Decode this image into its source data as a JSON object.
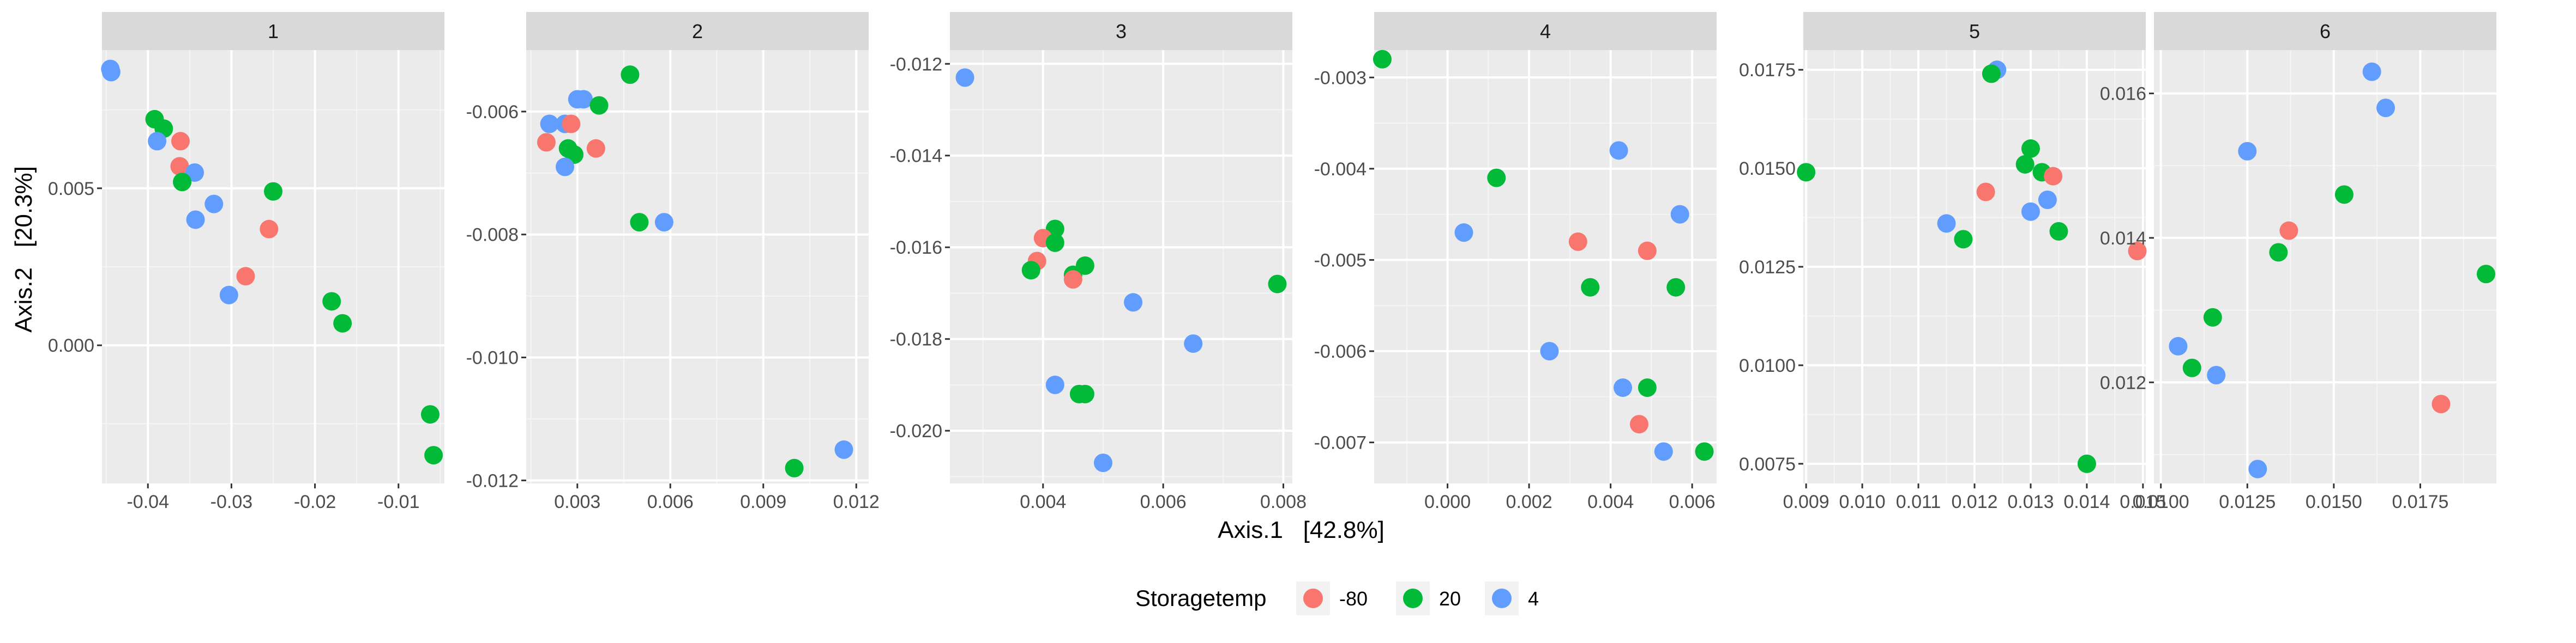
{
  "chart_data": {
    "type": "scatter",
    "xlabel": "Axis.1   [42.8%]",
    "ylabel": "Axis.2   [20.3%]",
    "legend": {
      "title": "Storagetemp",
      "position": "bottom",
      "entries": [
        {
          "label": "-80",
          "color": "#F8766D"
        },
        {
          "label": "20",
          "color": "#00BA38"
        },
        {
          "label": "4",
          "color": "#619CFF"
        }
      ]
    },
    "grid": true,
    "facets": [
      {
        "label": "1",
        "xlim": [
          -0.0455,
          -0.0045
        ],
        "ylim": [
          -0.0044,
          0.0094
        ],
        "xticks": [
          {
            "v": -0.04,
            "t": "-0.04"
          },
          {
            "v": -0.03,
            "t": "-0.03"
          },
          {
            "v": -0.02,
            "t": "-0.02"
          },
          {
            "v": -0.01,
            "t": "-0.01"
          }
        ],
        "yticks": [
          {
            "v": 0.0,
            "t": "0.000"
          },
          {
            "v": 0.005,
            "t": "0.005"
          }
        ],
        "points": [
          {
            "x": -0.0445,
            "y": 0.0088,
            "g": "4"
          },
          {
            "x": -0.0444,
            "y": 0.0087,
            "g": "4"
          },
          {
            "x": -0.0392,
            "y": 0.0072,
            "g": "20"
          },
          {
            "x": -0.0381,
            "y": 0.0069,
            "g": "20"
          },
          {
            "x": -0.0389,
            "y": 0.0065,
            "g": "4"
          },
          {
            "x": -0.0361,
            "y": 0.0065,
            "g": "-80"
          },
          {
            "x": -0.0362,
            "y": 0.0057,
            "g": "-80"
          },
          {
            "x": -0.0344,
            "y": 0.0055,
            "g": "4"
          },
          {
            "x": -0.0359,
            "y": 0.0052,
            "g": "20"
          },
          {
            "x": -0.025,
            "y": 0.0049,
            "g": "20"
          },
          {
            "x": -0.0321,
            "y": 0.0045,
            "g": "4"
          },
          {
            "x": -0.0343,
            "y": 0.004,
            "g": "4"
          },
          {
            "x": -0.0255,
            "y": 0.0037,
            "g": "-80"
          },
          {
            "x": -0.0283,
            "y": 0.0022,
            "g": "-80"
          },
          {
            "x": -0.0303,
            "y": 0.0016,
            "g": "4"
          },
          {
            "x": -0.018,
            "y": 0.0014,
            "g": "20"
          },
          {
            "x": -0.0167,
            "y": 0.0007,
            "g": "20"
          },
          {
            "x": -0.0062,
            "y": -0.0022,
            "g": "20"
          },
          {
            "x": -0.0058,
            "y": -0.0035,
            "g": "20"
          }
        ]
      },
      {
        "label": "2",
        "xlim": [
          0.00135,
          0.0124
        ],
        "ylim": [
          -0.01205,
          -0.005
        ],
        "xticks": [
          {
            "v": 0.003,
            "t": "0.003"
          },
          {
            "v": 0.006,
            "t": "0.006"
          },
          {
            "v": 0.009,
            "t": "0.009"
          },
          {
            "v": 0.012,
            "t": "0.012"
          }
        ],
        "yticks": [
          {
            "v": -0.006,
            "t": "-0.006"
          },
          {
            "v": -0.008,
            "t": "-0.008"
          },
          {
            "v": -0.01,
            "t": "-0.010"
          },
          {
            "v": -0.012,
            "t": "-0.012"
          }
        ],
        "points": [
          {
            "x": 0.0047,
            "y": -0.0054,
            "g": "20"
          },
          {
            "x": 0.0032,
            "y": -0.0058,
            "g": "4"
          },
          {
            "x": 0.003,
            "y": -0.0058,
            "g": "4"
          },
          {
            "x": 0.0037,
            "y": -0.0059,
            "g": "20"
          },
          {
            "x": 0.0021,
            "y": -0.0062,
            "g": "4"
          },
          {
            "x": 0.0026,
            "y": -0.0062,
            "g": "4"
          },
          {
            "x": 0.0028,
            "y": -0.0062,
            "g": "-80"
          },
          {
            "x": 0.002,
            "y": -0.0065,
            "g": "-80"
          },
          {
            "x": 0.0027,
            "y": -0.0066,
            "g": "20"
          },
          {
            "x": 0.0036,
            "y": -0.0066,
            "g": "-80"
          },
          {
            "x": 0.0029,
            "y": -0.0067,
            "g": "20"
          },
          {
            "x": 0.0026,
            "y": -0.0069,
            "g": "4"
          },
          {
            "x": 0.005,
            "y": -0.0078,
            "g": "20"
          },
          {
            "x": 0.0058,
            "y": -0.0078,
            "g": "4"
          },
          {
            "x": 0.0116,
            "y": -0.0115,
            "g": "4"
          },
          {
            "x": 0.01,
            "y": -0.0118,
            "g": "20"
          }
        ]
      },
      {
        "label": "3",
        "xlim": [
          0.00245,
          0.00815
        ],
        "ylim": [
          -0.02115,
          -0.0117
        ],
        "xticks": [
          {
            "v": 0.004,
            "t": "0.004"
          },
          {
            "v": 0.006,
            "t": "0.006"
          },
          {
            "v": 0.008,
            "t": "0.008"
          }
        ],
        "yticks": [
          {
            "v": -0.012,
            "t": "-0.012"
          },
          {
            "v": -0.014,
            "t": "-0.014"
          },
          {
            "v": -0.016,
            "t": "-0.016"
          },
          {
            "v": -0.018,
            "t": "-0.018"
          },
          {
            "v": -0.02,
            "t": "-0.020"
          }
        ],
        "points": [
          {
            "x": 0.0027,
            "y": -0.0123,
            "g": "4"
          },
          {
            "x": 0.0042,
            "y": -0.0156,
            "g": "20"
          },
          {
            "x": 0.004,
            "y": -0.0158,
            "g": "-80"
          },
          {
            "x": 0.0042,
            "y": -0.0159,
            "g": "20"
          },
          {
            "x": 0.0039,
            "y": -0.0163,
            "g": "-80"
          },
          {
            "x": 0.0038,
            "y": -0.0165,
            "g": "20"
          },
          {
            "x": 0.0047,
            "y": -0.0164,
            "g": "20"
          },
          {
            "x": 0.0045,
            "y": -0.0166,
            "g": "20"
          },
          {
            "x": 0.0045,
            "y": -0.0167,
            "g": "-80"
          },
          {
            "x": 0.0079,
            "y": -0.0168,
            "g": "20"
          },
          {
            "x": 0.0055,
            "y": -0.0172,
            "g": "4"
          },
          {
            "x": 0.0065,
            "y": -0.0181,
            "g": "4"
          },
          {
            "x": 0.0042,
            "y": -0.019,
            "g": "4"
          },
          {
            "x": 0.0046,
            "y": -0.0192,
            "g": "20"
          },
          {
            "x": 0.0047,
            "y": -0.0192,
            "g": "20"
          },
          {
            "x": 0.005,
            "y": -0.0207,
            "g": "4"
          }
        ]
      },
      {
        "label": "4",
        "xlim": [
          -0.0018,
          0.0066
        ],
        "ylim": [
          -0.00745,
          -0.0027
        ],
        "xticks": [
          {
            "v": 0.0,
            "t": "0.000"
          },
          {
            "v": 0.002,
            "t": "0.002"
          },
          {
            "v": 0.004,
            "t": "0.004"
          },
          {
            "v": 0.006,
            "t": "0.006"
          }
        ],
        "yticks": [
          {
            "v": -0.003,
            "t": "-0.003"
          },
          {
            "v": -0.004,
            "t": "-0.004"
          },
          {
            "v": -0.005,
            "t": "-0.005"
          },
          {
            "v": -0.006,
            "t": "-0.006"
          },
          {
            "v": -0.007,
            "t": "-0.007"
          }
        ],
        "points": [
          {
            "x": -0.0016,
            "y": -0.0028,
            "g": "20"
          },
          {
            "x": 0.0042,
            "y": -0.0038,
            "g": "4"
          },
          {
            "x": 0.0012,
            "y": -0.0041,
            "g": "20"
          },
          {
            "x": 0.0057,
            "y": -0.0045,
            "g": "4"
          },
          {
            "x": 0.0004,
            "y": -0.0047,
            "g": "4"
          },
          {
            "x": 0.0032,
            "y": -0.0048,
            "g": "-80"
          },
          {
            "x": 0.0049,
            "y": -0.0049,
            "g": "-80"
          },
          {
            "x": 0.0035,
            "y": -0.0053,
            "g": "20"
          },
          {
            "x": 0.0056,
            "y": -0.0053,
            "g": "20"
          },
          {
            "x": 0.0025,
            "y": -0.006,
            "g": "4"
          },
          {
            "x": 0.0043,
            "y": -0.0064,
            "g": "4"
          },
          {
            "x": 0.0049,
            "y": -0.0064,
            "g": "20"
          },
          {
            "x": 0.0047,
            "y": -0.0068,
            "g": "-80"
          },
          {
            "x": 0.0053,
            "y": -0.0071,
            "g": "4"
          },
          {
            "x": 0.0063,
            "y": -0.0071,
            "g": "20"
          }
        ]
      },
      {
        "label": "5",
        "xlim": [
          0.00895,
          0.01505
        ],
        "ylim": [
          0.007,
          0.018
        ],
        "xticks": [
          {
            "v": 0.009,
            "t": "0.009"
          },
          {
            "v": 0.01,
            "t": "0.010"
          },
          {
            "v": 0.011,
            "t": "0.011"
          },
          {
            "v": 0.012,
            "t": "0.012"
          },
          {
            "v": 0.013,
            "t": "0.013"
          },
          {
            "v": 0.014,
            "t": "0.014"
          },
          {
            "v": 0.015,
            "t": "0.015"
          }
        ],
        "yticks": [
          {
            "v": 0.0075,
            "t": "0.0075"
          },
          {
            "v": 0.01,
            "t": "0.0100"
          },
          {
            "v": 0.0125,
            "t": "0.0125"
          },
          {
            "v": 0.015,
            "t": "0.0150"
          },
          {
            "v": 0.0175,
            "t": "0.0175"
          }
        ],
        "points": [
          {
            "x": 0.0124,
            "y": 0.0175,
            "g": "4"
          },
          {
            "x": 0.0123,
            "y": 0.0174,
            "g": "20"
          },
          {
            "x": 0.013,
            "y": 0.0155,
            "g": "20"
          },
          {
            "x": 0.0129,
            "y": 0.0151,
            "g": "20"
          },
          {
            "x": 0.009,
            "y": 0.0149,
            "g": "20"
          },
          {
            "x": 0.0132,
            "y": 0.0149,
            "g": "20"
          },
          {
            "x": 0.0134,
            "y": 0.0148,
            "g": "-80"
          },
          {
            "x": 0.0122,
            "y": 0.0144,
            "g": "-80"
          },
          {
            "x": 0.0133,
            "y": 0.0142,
            "g": "4"
          },
          {
            "x": 0.013,
            "y": 0.0139,
            "g": "4"
          },
          {
            "x": 0.0115,
            "y": 0.0136,
            "g": "4"
          },
          {
            "x": 0.0135,
            "y": 0.0134,
            "g": "20"
          },
          {
            "x": 0.0118,
            "y": 0.0132,
            "g": "20"
          },
          {
            "x": 0.0149,
            "y": 0.0129,
            "g": "-80"
          },
          {
            "x": 0.014,
            "y": 0.0075,
            "g": "20"
          }
        ]
      },
      {
        "label": "6",
        "xlim": [
          0.0098,
          0.0197
        ],
        "ylim": [
          0.0106,
          0.0166
        ],
        "xticks": [
          {
            "v": 0.01,
            "t": "0.0100"
          },
          {
            "v": 0.0125,
            "t": "0.0125"
          },
          {
            "v": 0.015,
            "t": "0.0150"
          },
          {
            "v": 0.0175,
            "t": "0.0175"
          }
        ],
        "yticks": [
          {
            "v": 0.012,
            "t": "0.012"
          },
          {
            "v": 0.014,
            "t": "0.014"
          },
          {
            "v": 0.016,
            "t": "0.016"
          }
        ],
        "points": [
          {
            "x": 0.0161,
            "y": 0.0163,
            "g": "4"
          },
          {
            "x": 0.0165,
            "y": 0.0158,
            "g": "4"
          },
          {
            "x": 0.0125,
            "y": 0.0152,
            "g": "4"
          },
          {
            "x": 0.0153,
            "y": 0.0146,
            "g": "20"
          },
          {
            "x": 0.0137,
            "y": 0.0141,
            "g": "-80"
          },
          {
            "x": 0.0134,
            "y": 0.0138,
            "g": "20"
          },
          {
            "x": 0.0194,
            "y": 0.0135,
            "g": "20"
          },
          {
            "x": 0.0115,
            "y": 0.0129,
            "g": "20"
          },
          {
            "x": 0.0105,
            "y": 0.0125,
            "g": "4"
          },
          {
            "x": 0.0109,
            "y": 0.0122,
            "g": "20"
          },
          {
            "x": 0.0116,
            "y": 0.0121,
            "g": "4"
          },
          {
            "x": 0.0181,
            "y": 0.0117,
            "g": "-80"
          },
          {
            "x": 0.0128,
            "y": 0.0108,
            "g": "4"
          }
        ]
      }
    ]
  }
}
